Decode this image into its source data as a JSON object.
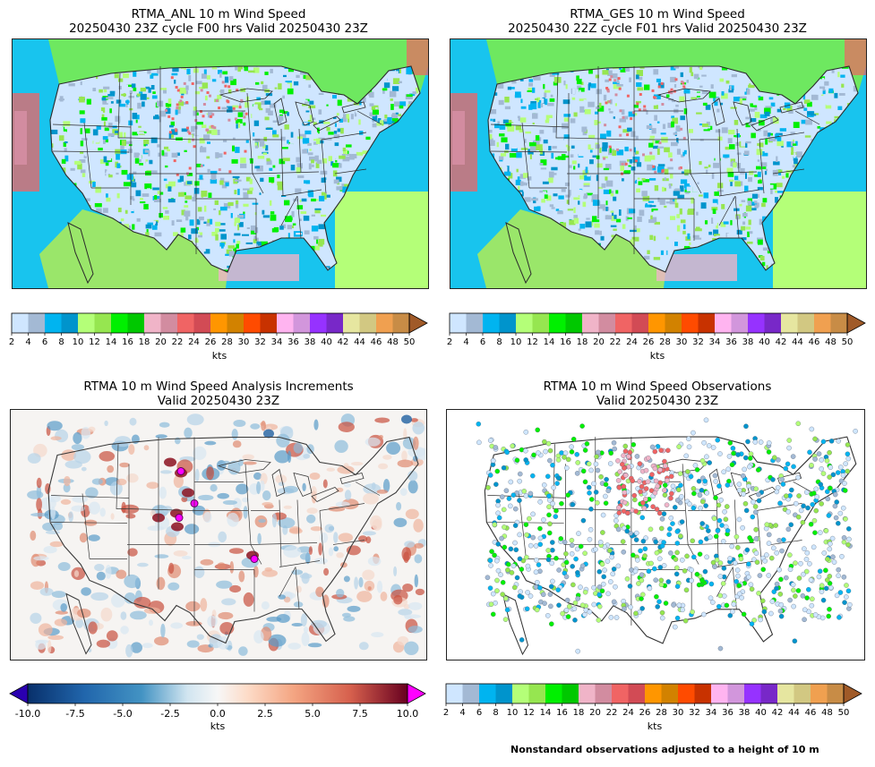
{
  "panels": {
    "anl": {
      "title_1": "RTMA_ANL 10 m Wind Speed",
      "title_2": "20250430 23Z cycle F00 hrs Valid 20250430 23Z"
    },
    "ges": {
      "title_1": "RTMA_GES 10 m Wind Speed",
      "title_2": "20250430 22Z cycle F01 hrs Valid 20250430 23Z"
    },
    "inc": {
      "title_1": "RTMA 10 m Wind Speed Analysis Increments",
      "title_2": "Valid 20250430 23Z"
    },
    "obs": {
      "title_1": "RTMA 10 m Wind Speed Observations",
      "title_2": "Valid 20250430 23Z"
    }
  },
  "speed_colorbar": {
    "unit": "kts",
    "ticks": [
      "2",
      "4",
      "6",
      "8",
      "10",
      "12",
      "14",
      "16",
      "18",
      "20",
      "22",
      "24",
      "26",
      "28",
      "30",
      "32",
      "34",
      "36",
      "38",
      "40",
      "42",
      "44",
      "46",
      "48",
      "50"
    ],
    "colors": [
      "#cfe6ff",
      "#a3b9d4",
      "#00b4f0",
      "#0094cc",
      "#b4ff78",
      "#96e650",
      "#00f000",
      "#00c800",
      "#f0b4c8",
      "#d28ca0",
      "#f06464",
      "#d24b55",
      "#ff9600",
      "#d28200",
      "#ff4b00",
      "#c83200",
      "#ffb4f0",
      "#d296dc",
      "#9632ff",
      "#7828c8",
      "#e6e6a0",
      "#d2c882",
      "#f0a050",
      "#c88c46"
    ],
    "extend_color": "#a05a28"
  },
  "increment_colorbar": {
    "unit": "kts",
    "ticks": [
      "-10.0",
      "-7.5",
      "-5.0",
      "-2.5",
      "0.0",
      "2.5",
      "5.0",
      "7.5",
      "10.0"
    ],
    "low_color": "#2a00b0",
    "high_color": "#ff00ff"
  },
  "footnote": "Nonstandard observations adjusted to a height of 10 m"
}
